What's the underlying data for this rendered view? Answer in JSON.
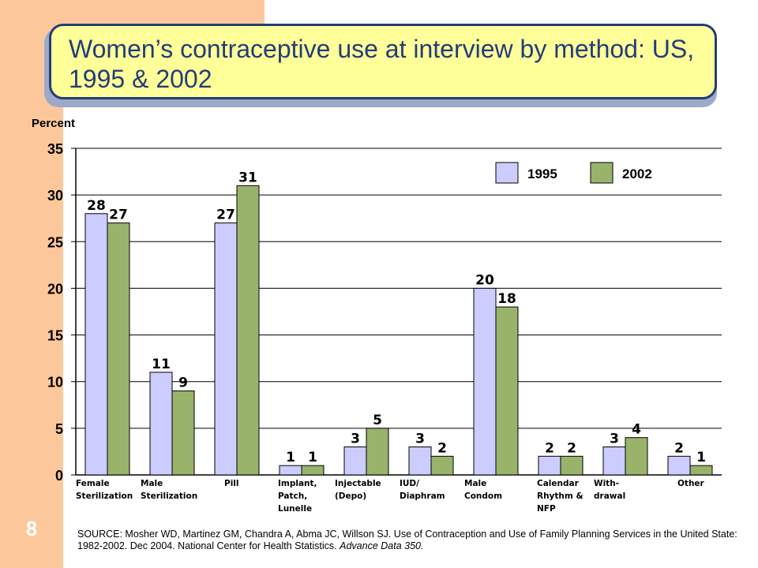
{
  "slide": {
    "title": "Women’s contraceptive use at interview by method: US, 1995 & 2002",
    "number": "8",
    "source_main": "SOURCE: Mosher WD, Martinez GM, Chandra A, Abma JC, Willson SJ. Use of Contraception and Use of Family Planning Services in the United State: 1982-2002.  Dec 2004.  National Center for Health Statistics.",
    "source_italic": "Advance Data 350."
  },
  "colors": {
    "band": "#fcc89b",
    "title_fill": "#ffff99",
    "title_border": "#233d7a",
    "bar_1995": "#ccccff",
    "bar_2002": "#99b36b"
  },
  "chart_data": {
    "type": "bar",
    "ylabel": "Percent",
    "ylim": [
      0,
      35
    ],
    "yticks": [
      "0",
      "5",
      "10",
      "15",
      "20",
      "25",
      "30",
      "35"
    ],
    "grid": true,
    "legend_position": "top-right",
    "categories": [
      [
        "Female",
        "Sterilization"
      ],
      [
        "Male",
        "Sterilization"
      ],
      [
        "Pill"
      ],
      [
        "Implant,",
        "Patch,",
        "Lunelle"
      ],
      [
        "Injectable",
        "(Depo)"
      ],
      [
        "IUD/",
        "Diaphram"
      ],
      [
        "Male",
        "Condom"
      ],
      [
        "Calendar",
        "Rhythm &",
        "NFP"
      ],
      [
        "With-",
        "drawal"
      ],
      [
        "Other"
      ]
    ],
    "series": [
      {
        "name": "1995",
        "values": [
          28,
          11,
          27,
          1,
          3,
          3,
          20,
          2,
          3,
          2
        ],
        "labels": [
          "28",
          "11",
          "27",
          "1",
          "3",
          "3",
          "20",
          "2",
          "3",
          "2"
        ]
      },
      {
        "name": "2002",
        "values": [
          27,
          9,
          31,
          1,
          5,
          2,
          18,
          2,
          4,
          1
        ],
        "labels": [
          "27",
          "9",
          "31",
          "1",
          "5",
          "2",
          "18",
          "2",
          "4",
          "1"
        ]
      }
    ]
  }
}
